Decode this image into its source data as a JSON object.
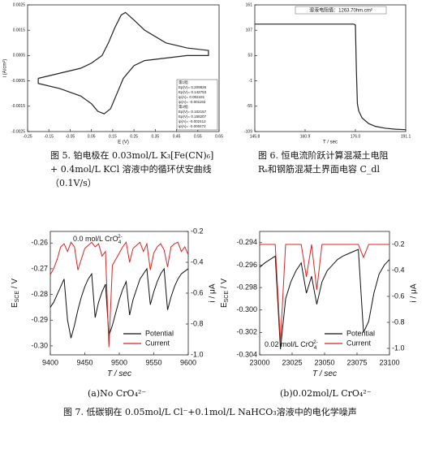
{
  "chart_data": [
    {
      "type": "line",
      "xlabel": "E (V)",
      "ylabel": "i (A/cm²)",
      "x": [
        -0.2,
        -0.1,
        0,
        0.05,
        0.1,
        0.13,
        0.16,
        0.19,
        0.21,
        0.25,
        0.3,
        0.4,
        0.5,
        0.6,
        0.6,
        0.5,
        0.4,
        0.3,
        0.25,
        0.2,
        0.17,
        0.14,
        0.11,
        0.08,
        0.05,
        0,
        -0.1,
        -0.2,
        -0.2
      ],
      "series": [
        {
          "color": "#222222",
          "values": [
            -0.0004,
            -0.0002,
            0,
            0.0002,
            0.0005,
            0.001,
            0.0016,
            0.0021,
            0.0022,
            0.0019,
            0.0015,
            0.001,
            0.0008,
            0.0007,
            0.0005,
            0.0005,
            0.0004,
            0.0003,
            0.0001,
            -0.0004,
            -0.001,
            -0.0016,
            -0.0018,
            -0.0017,
            -0.0014,
            -0.0011,
            -0.0008,
            -0.0006,
            -0.0004
          ]
        }
      ],
      "xlim": [
        -0.25,
        0.65
      ],
      "xticks": [
        -0.25,
        -0.15,
        -0.05,
        0.05,
        0.15,
        0.25,
        0.35,
        0.45,
        0.55,
        0.65
      ],
      "ylim": [
        -0.0025,
        0.0025
      ],
      "yticks": [
        -0.0025,
        -0.0015,
        -0.0005,
        0.0005,
        0.0015,
        0.0025
      ],
      "annotation": [
        "第1批:",
        "Ep(V)= 0.209826",
        "Ep(V)= 0.142753",
        "ip(A)= 0.002431",
        "ip(A)= -0.001193",
        "第2批:",
        "Ep(V)= 0.102157",
        "Ep(V)= 0.158207",
        "ip(A)= -0.002412",
        "ip(A)= -0.000472"
      ]
    },
    {
      "type": "line",
      "xlabel": "T / sec",
      "x": [
        145.8,
        150,
        155,
        160,
        165,
        170,
        175,
        175.5,
        176,
        176.3,
        176.6,
        177,
        178,
        180,
        182,
        185,
        188,
        191.1
      ],
      "series": [
        {
          "color": "#222222",
          "values": [
            120,
            120,
            120,
            120,
            120,
            120,
            120,
            120,
            118,
            20,
            -50,
            -65,
            -80,
            -92,
            -98,
            -102,
            -104,
            -105
          ]
        }
      ],
      "xlim": [
        145.8,
        191.1
      ],
      "xticks": [
        145.8,
        160.9,
        {
          "value": 176,
          "label": "176.0"
        },
        191.1
      ],
      "ylim": [
        -109,
        161
      ],
      "yticks": [
        161,
        107,
        53,
        -1,
        -55,
        -109
      ],
      "annotation": "溶液电阻值：1263.70hm.cm²"
    },
    {
      "type": "line",
      "xlabel": "T / sec",
      "ylabel": [
        "E",
        "SCE",
        " / V"
      ],
      "y2label": "i / μA",
      "x": [
        9400,
        9405,
        9410,
        9415,
        9420,
        9425,
        9430,
        9435,
        9440,
        9445,
        9450,
        9455,
        9460,
        9465,
        9470,
        9475,
        9480,
        9485,
        9490,
        9495,
        9500,
        9505,
        9510,
        9515,
        9520,
        9525,
        9530,
        9535,
        9540,
        9545,
        9550,
        9555,
        9560,
        9565,
        9570,
        9575,
        9580,
        9585,
        9590,
        9595,
        9600
      ],
      "series": [
        {
          "name": "Potential",
          "color": "#111111",
          "values": [
            -0.285,
            -0.283,
            -0.28,
            -0.277,
            -0.274,
            -0.29,
            -0.297,
            -0.292,
            -0.286,
            -0.281,
            -0.277,
            -0.274,
            -0.272,
            -0.289,
            -0.283,
            -0.279,
            -0.276,
            -0.296,
            -0.292,
            -0.287,
            -0.282,
            -0.278,
            -0.275,
            -0.288,
            -0.282,
            -0.278,
            -0.274,
            -0.272,
            -0.27,
            -0.284,
            -0.279,
            -0.275,
            -0.272,
            -0.27,
            -0.286,
            -0.281,
            -0.277,
            -0.274,
            -0.272,
            -0.271,
            -0.27
          ]
        },
        {
          "name": "Current",
          "color": "#e02020",
          "axis": "y2",
          "values": [
            -0.48,
            -0.44,
            -0.38,
            -0.3,
            -0.28,
            -0.33,
            -0.27,
            -0.3,
            -0.45,
            -0.38,
            -0.31,
            -0.29,
            -0.27,
            -0.3,
            -0.28,
            -0.36,
            -0.33,
            -0.95,
            -0.42,
            -0.38,
            -0.34,
            -0.3,
            -0.27,
            -0.4,
            -0.31,
            -0.29,
            -0.27,
            -0.33,
            -0.28,
            -0.45,
            -0.34,
            -0.3,
            -0.28,
            -0.32,
            -0.43,
            -0.3,
            -0.28,
            -0.27,
            -0.33,
            -0.3,
            -0.35
          ]
        }
      ],
      "xlim": [
        9400,
        9600
      ],
      "xticks": [
        9400,
        9450,
        9500,
        9550,
        9600
      ],
      "ylim": [
        -0.3035,
        -0.2555
      ],
      "yticks": [
        {
          "value": -0.3,
          "label": "-0.30"
        },
        -0.29,
        -0.28,
        -0.27,
        -0.26
      ],
      "y2lim": [
        -1.0,
        -0.2
      ],
      "y2ticks": [
        {
          "value": -1,
          "label": "-1.0"
        },
        -0.8,
        -0.6,
        -0.4,
        -0.2
      ],
      "annotation": [
        "0.0 mol/L CrO",
        "4",
        "2-"
      ],
      "legend": "lower right"
    },
    {
      "type": "line",
      "xlabel": "T / sec",
      "ylabel": [
        "E",
        "SCE",
        " / V"
      ],
      "y2label": "i / μA",
      "x": [
        23000,
        23004,
        23008,
        23012,
        23016,
        23020,
        23024,
        23028,
        23032,
        23036,
        23040,
        23044,
        23048,
        23052,
        23056,
        23060,
        23064,
        23068,
        23072,
        23076,
        23080,
        23084,
        23088,
        23092,
        23096,
        23100
      ],
      "series": [
        {
          "name": "Potential",
          "color": "#111111",
          "values": [
            -0.2962,
            -0.2958,
            -0.2955,
            -0.2952,
            -0.3035,
            -0.299,
            -0.2975,
            -0.2965,
            -0.2958,
            -0.2985,
            -0.297,
            -0.2995,
            -0.2975,
            -0.2965,
            -0.296,
            -0.2955,
            -0.2952,
            -0.295,
            -0.2948,
            -0.2946,
            -0.302,
            -0.301,
            -0.2985,
            -0.2968,
            -0.296,
            -0.2955
          ]
        },
        {
          "name": "Current",
          "color": "#e02020",
          "axis": "y2",
          "values": [
            -0.2,
            -0.2,
            -0.2,
            -0.2,
            -0.95,
            -0.2,
            -0.2,
            -0.2,
            -0.2,
            -0.45,
            -0.2,
            -0.55,
            -0.2,
            -0.2,
            -0.2,
            -0.2,
            -0.2,
            -0.2,
            -0.2,
            -0.2,
            -0.3,
            -0.2,
            -0.2,
            -0.2,
            -0.2,
            -0.2
          ]
        }
      ],
      "xlim": [
        23000,
        23100
      ],
      "xticks": [
        23000,
        23025,
        23050,
        23075,
        23100
      ],
      "ylim": [
        -0.304,
        -0.293
      ],
      "yticks": [
        -0.304,
        -0.302,
        {
          "value": -0.3,
          "label": "-0.300"
        },
        -0.298,
        -0.296,
        -0.294
      ],
      "y2lim": [
        -1.05,
        -0.1
      ],
      "y2ticks": [
        {
          "value": -1,
          "label": "-1.0"
        },
        -0.8,
        -0.6,
        -0.4,
        -0.2
      ],
      "annotation": [
        "0.02 mol/L CrO",
        "4",
        "2-"
      ],
      "legend": "lower right"
    }
  ],
  "captions": {
    "fig5": [
      "图 5. 铂电极在 0.03mol/L K₃[Fe(CN)₆]",
      "+ 0.4mol/L KCl 溶液中的循环伏安曲线",
      "（0.1V/s）"
    ],
    "fig6": [
      "图 6. 恒电流阶跃计算混凝土电阻",
      "Rₛ和钢筋混凝土界面电容 C_dl"
    ],
    "fig7a": "(a)No CrO₄²⁻",
    "fig7b": "(b)0.02mol/L CrO₄²⁻",
    "fig7": "图 7. 低碳钢在 0.05mol/L Cl⁻+0.1mol/L NaHCO₃溶液中的电化学噪声"
  }
}
